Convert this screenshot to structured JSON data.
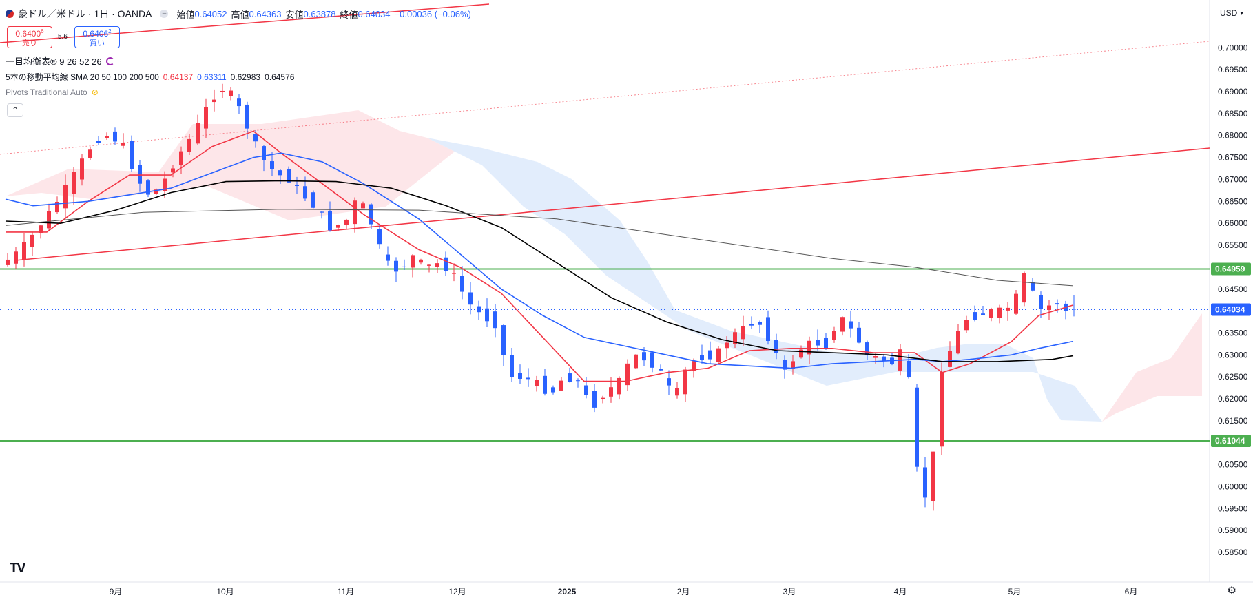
{
  "header": {
    "symbol_title": "豪ドル／米ドル · 1日 · OANDA",
    "ohlc": {
      "open_label": "始値",
      "open": "0.64052",
      "high_label": "高値",
      "high": "0.64363",
      "low_label": "安値",
      "low": "0.63878",
      "close_label": "終値",
      "close": "0.64034",
      "change": "−0.00036 (−0.06%)"
    }
  },
  "trade": {
    "sell_price": "0.6400",
    "sell_sup": "6",
    "sell_label": "売り",
    "spread": "5.6",
    "buy_price": "0.6406",
    "buy_sup": "2",
    "buy_label": "買い"
  },
  "indicators": {
    "ichimoku": "一目均衡表® 9 26 52 26",
    "sma_label": "5本の移動平均線 SMA 20 50 100 200 500",
    "sma_values": [
      "0.64137",
      "0.63311",
      "0.62983",
      "0.64576"
    ],
    "pivots": "Pivots Traditional Auto"
  },
  "currency_button": "USD",
  "colors": {
    "bull": "#f23645",
    "bear": "#2962ff",
    "sma20": "#f23645",
    "sma50": "#2962ff",
    "sma200": "#000000",
    "sma500": "#555555",
    "support": "#4caf50",
    "channel": "#f23645",
    "cloud_bull": "#fde0e3",
    "cloud_bear": "#dbe8fb"
  },
  "chart_data": {
    "type": "candlestick",
    "y_axis_ticks": [
      "0.70000",
      "0.69500",
      "0.69000",
      "0.68500",
      "0.68000",
      "0.67500",
      "0.67000",
      "0.66500",
      "0.66000",
      "0.65500",
      "0.65000",
      "0.64500",
      "0.64000",
      "0.63500",
      "0.63000",
      "0.62500",
      "0.62000",
      "0.61500",
      "0.61000",
      "0.60500",
      "0.60000",
      "0.59500",
      "0.59000",
      "0.58500"
    ],
    "x_axis_ticks": [
      "9月",
      "10月",
      "11月",
      "12月",
      "2025",
      "2月",
      "3月",
      "4月",
      "5月",
      "6月"
    ],
    "ylim": [
      0.5825,
      0.7035
    ],
    "horizontal_levels": [
      {
        "label": "0.64959",
        "value": 0.64959,
        "color": "#4caf50"
      },
      {
        "label": "0.61044",
        "value": 0.61044,
        "color": "#4caf50"
      }
    ],
    "current_price": {
      "label": "0.64034",
      "value": 0.64034,
      "color": "#2962ff"
    },
    "last_candle": {
      "open": 0.64052,
      "high": 0.64363,
      "low": 0.63878,
      "close": 0.64034
    },
    "price_path": [
      [
        0,
        0.6505
      ],
      [
        10,
        0.6525
      ],
      [
        20,
        0.6555
      ],
      [
        30,
        0.6598
      ],
      [
        40,
        0.664
      ],
      [
        50,
        0.669
      ],
      [
        60,
        0.6742
      ],
      [
        70,
        0.679
      ],
      [
        80,
        0.6802
      ],
      [
        90,
        0.6775
      ],
      [
        100,
        0.67
      ],
      [
        110,
        0.666
      ],
      [
        120,
        0.67
      ],
      [
        130,
        0.6755
      ],
      [
        140,
        0.68
      ],
      [
        150,
        0.686
      ],
      [
        160,
        0.691
      ],
      [
        170,
        0.689
      ],
      [
        180,
        0.682
      ],
      [
        190,
        0.675
      ],
      [
        200,
        0.6715
      ],
      [
        210,
        0.67
      ],
      [
        220,
        0.6665
      ],
      [
        230,
        0.6635
      ],
      [
        240,
        0.659
      ],
      [
        250,
        0.66
      ],
      [
        255,
        0.662
      ],
      [
        260,
        0.6665
      ],
      [
        270,
        0.66
      ],
      [
        280,
        0.651
      ],
      [
        290,
        0.649
      ],
      [
        300,
        0.6525
      ],
      [
        310,
        0.65
      ],
      [
        320,
        0.651
      ],
      [
        330,
        0.648
      ],
      [
        340,
        0.642
      ],
      [
        350,
        0.639
      ],
      [
        360,
        0.637
      ],
      [
        370,
        0.625
      ],
      [
        380,
        0.625
      ],
      [
        390,
        0.6235
      ],
      [
        400,
        0.621
      ],
      [
        410,
        0.625
      ],
      [
        420,
        0.624
      ],
      [
        430,
        0.618
      ],
      [
        440,
        0.6215
      ],
      [
        450,
        0.624
      ],
      [
        460,
        0.63
      ],
      [
        470,
        0.629
      ],
      [
        480,
        0.626
      ],
      [
        490,
        0.62
      ],
      [
        500,
        0.628
      ],
      [
        510,
        0.6295
      ],
      [
        520,
        0.63
      ],
      [
        530,
        0.634
      ],
      [
        540,
        0.636
      ],
      [
        550,
        0.638
      ],
      [
        560,
        0.633
      ],
      [
        570,
        0.626
      ],
      [
        580,
        0.631
      ],
      [
        590,
        0.633
      ],
      [
        600,
        0.632
      ],
      [
        610,
        0.639
      ],
      [
        620,
        0.635
      ],
      [
        630,
        0.63
      ],
      [
        640,
        0.629
      ],
      [
        650,
        0.628
      ],
      [
        655,
        0.631
      ],
      [
        660,
        0.624
      ],
      [
        665,
        0.605
      ],
      [
        670,
        0.599
      ],
      [
        675,
        0.596
      ],
      [
        680,
        0.615
      ],
      [
        685,
        0.63
      ],
      [
        690,
        0.631
      ],
      [
        700,
        0.638
      ],
      [
        710,
        0.639
      ],
      [
        720,
        0.64
      ],
      [
        730,
        0.64
      ],
      [
        740,
        0.644
      ],
      [
        745,
        0.649
      ],
      [
        750,
        0.644
      ],
      [
        755,
        0.641
      ],
      [
        760,
        0.638
      ],
      [
        765,
        0.646
      ],
      [
        770,
        0.639
      ],
      [
        775,
        0.6403
      ]
    ],
    "sma_series": [
      {
        "name": "SMA 20",
        "color": "#f23645",
        "points": [
          [
            0,
            0.658
          ],
          [
            30,
            0.658
          ],
          [
            60,
            0.665
          ],
          [
            90,
            0.671
          ],
          [
            120,
            0.671
          ],
          [
            150,
            0.6775
          ],
          [
            180,
            0.681
          ],
          [
            200,
            0.676
          ],
          [
            230,
            0.669
          ],
          [
            260,
            0.662
          ],
          [
            300,
            0.654
          ],
          [
            330,
            0.65
          ],
          [
            360,
            0.644
          ],
          [
            390,
            0.634
          ],
          [
            420,
            0.624
          ],
          [
            450,
            0.624
          ],
          [
            480,
            0.626
          ],
          [
            510,
            0.627
          ],
          [
            540,
            0.631
          ],
          [
            570,
            0.6315
          ],
          [
            600,
            0.6315
          ],
          [
            630,
            0.6305
          ],
          [
            660,
            0.6305
          ],
          [
            680,
            0.626
          ],
          [
            700,
            0.628
          ],
          [
            730,
            0.633
          ],
          [
            750,
            0.639
          ],
          [
            775,
            0.64137
          ]
        ]
      },
      {
        "name": "SMA 50",
        "color": "#2962ff",
        "points": [
          [
            0,
            0.6655
          ],
          [
            20,
            0.664
          ],
          [
            60,
            0.665
          ],
          [
            90,
            0.6665
          ],
          [
            120,
            0.668
          ],
          [
            150,
            0.6715
          ],
          [
            180,
            0.675
          ],
          [
            200,
            0.676
          ],
          [
            230,
            0.674
          ],
          [
            260,
            0.669
          ],
          [
            300,
            0.661
          ],
          [
            330,
            0.653
          ],
          [
            360,
            0.645
          ],
          [
            390,
            0.639
          ],
          [
            420,
            0.634
          ],
          [
            450,
            0.632
          ],
          [
            480,
            0.63
          ],
          [
            510,
            0.628
          ],
          [
            540,
            0.6275
          ],
          [
            570,
            0.627
          ],
          [
            600,
            0.628
          ],
          [
            630,
            0.6285
          ],
          [
            660,
            0.629
          ],
          [
            680,
            0.6285
          ],
          [
            700,
            0.629
          ],
          [
            730,
            0.63
          ],
          [
            750,
            0.6315
          ],
          [
            775,
            0.63311
          ]
        ]
      },
      {
        "name": "SMA 200",
        "color": "#000000",
        "points": [
          [
            0,
            0.6605
          ],
          [
            40,
            0.66
          ],
          [
            80,
            0.663
          ],
          [
            120,
            0.667
          ],
          [
            160,
            0.6695
          ],
          [
            200,
            0.6697
          ],
          [
            240,
            0.6695
          ],
          [
            280,
            0.668
          ],
          [
            320,
            0.664
          ],
          [
            360,
            0.659
          ],
          [
            400,
            0.651
          ],
          [
            440,
            0.643
          ],
          [
            480,
            0.6375
          ],
          [
            520,
            0.6335
          ],
          [
            560,
            0.631
          ],
          [
            600,
            0.6305
          ],
          [
            640,
            0.63
          ],
          [
            680,
            0.6285
          ],
          [
            720,
            0.6285
          ],
          [
            760,
            0.629
          ],
          [
            775,
            0.62983
          ]
        ]
      },
      {
        "name": "SMA 500",
        "color": "#555555",
        "points": [
          [
            0,
            0.6595
          ],
          [
            100,
            0.6625
          ],
          [
            200,
            0.6632
          ],
          [
            300,
            0.663
          ],
          [
            400,
            0.661
          ],
          [
            500,
            0.6565
          ],
          [
            600,
            0.652
          ],
          [
            660,
            0.65
          ],
          [
            720,
            0.647
          ],
          [
            775,
            0.64576
          ]
        ]
      }
    ]
  }
}
